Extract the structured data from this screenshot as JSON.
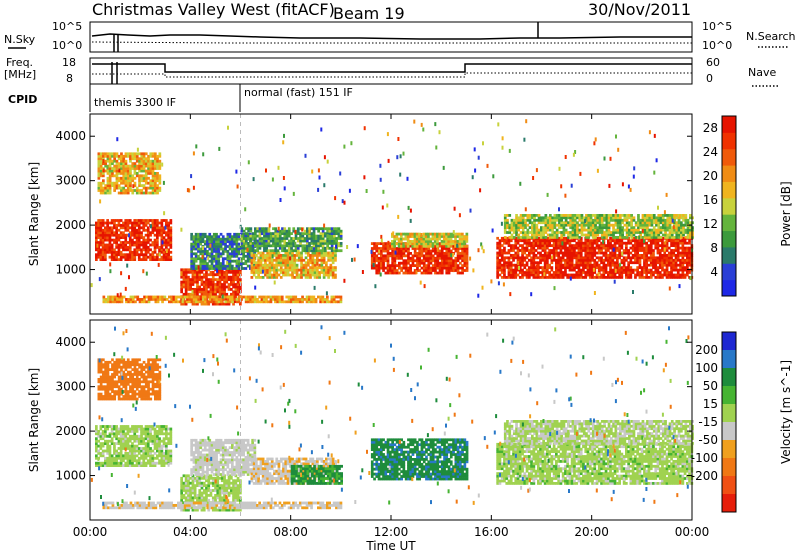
{
  "header": {
    "title": "Christmas Valley West (fitACF)",
    "beam": "Beam 19",
    "date": "30/Nov/2011"
  },
  "labels": {
    "nsky": "N.Sky",
    "nsky_lo": "10^0",
    "nsky_hi": "10^5",
    "nsearch": "N.Search",
    "nsearch_lo": "10^0",
    "nsearch_hi": "10^5",
    "freq": "Freq.",
    "freq_unit": "[MHz]",
    "freq_lo": "8",
    "freq_hi": "18",
    "nave": "Nave",
    "nave_lo": "0",
    "nave_hi": "60",
    "cpid": "CPID",
    "cpid1": "themis 3300 IF",
    "cpid2": "normal (fast) 151 IF"
  },
  "colors": {
    "power": [
      "#1e28e6",
      "#2a3fd6",
      "#2a7a6a",
      "#3c9a3c",
      "#64b43c",
      "#c8d23c",
      "#f0b41e",
      "#f08c14",
      "#f05a0a",
      "#f03200",
      "#e61400"
    ],
    "velocity": [
      "#1e28d2",
      "#2878c8",
      "#1e8c3c",
      "#46b432",
      "#a0d250",
      "#c8c8c8",
      "#f0a01e",
      "#f07814",
      "#f05014",
      "#e61e0a"
    ]
  },
  "chart_data": [
    {
      "type": "heatmap",
      "name": "power",
      "xlabel": "Time UT",
      "ylabel": "Slant Range [km]",
      "colorbar_label": "Power [dB]",
      "xlim": [
        0,
        24
      ],
      "ylim": [
        0,
        4500
      ],
      "xticks": [
        "00:00",
        "04:00",
        "08:00",
        "12:00",
        "16:00",
        "20:00",
        "00:00"
      ],
      "xtick_values": [
        0,
        4,
        8,
        12,
        16,
        20,
        24
      ],
      "yticks": [
        1000,
        2000,
        3000,
        4000
      ],
      "colorbar_ticks": [
        4,
        8,
        12,
        16,
        20,
        24,
        28
      ],
      "colorbar_range": [
        0,
        30
      ],
      "regions": [
        {
          "t": [
            0.2,
            3.2
          ],
          "r": [
            1200,
            2100
          ],
          "value": 27
        },
        {
          "t": [
            0.3,
            2.8
          ],
          "r": [
            2700,
            3600
          ],
          "value": 18
        },
        {
          "t": [
            3.6,
            6.0
          ],
          "r": [
            200,
            1000
          ],
          "value": 26
        },
        {
          "t": [
            4.0,
            6.6
          ],
          "r": [
            1000,
            1800
          ],
          "value": 8
        },
        {
          "t": [
            6.4,
            9.8
          ],
          "r": [
            800,
            1400
          ],
          "value": 18
        },
        {
          "t": [
            6.0,
            10.0
          ],
          "r": [
            1400,
            1900
          ],
          "value": 10
        },
        {
          "t": [
            11.2,
            15.0
          ],
          "r": [
            900,
            1600
          ],
          "value": 27
        },
        {
          "t": [
            12.0,
            15.0
          ],
          "r": [
            1500,
            1800
          ],
          "value": 16
        },
        {
          "t": [
            16.2,
            24.0
          ],
          "r": [
            800,
            1700
          ],
          "value": 28
        },
        {
          "t": [
            16.5,
            24.0
          ],
          "r": [
            1700,
            2200
          ],
          "value": 14
        },
        {
          "t": [
            0.5,
            10.0
          ],
          "r": [
            250,
            400
          ],
          "value": 20
        }
      ]
    },
    {
      "type": "heatmap",
      "name": "velocity",
      "xlabel": "Time UT",
      "ylabel": "Slant Range [km]",
      "colorbar_label": "Velocity [m s^-1]",
      "xlim": [
        0,
        24
      ],
      "ylim": [
        0,
        4500
      ],
      "xticks": [
        "00:00",
        "04:00",
        "08:00",
        "12:00",
        "16:00",
        "20:00",
        "00:00"
      ],
      "xtick_values": [
        0,
        4,
        8,
        12,
        16,
        20,
        24
      ],
      "yticks": [
        1000,
        2000,
        3000,
        4000
      ],
      "colorbar_ticks": [
        "200",
        "100",
        "50",
        "15",
        "-15",
        "-50",
        "-100",
        "-200"
      ],
      "regions": [
        {
          "t": [
            0.2,
            3.2
          ],
          "r": [
            1200,
            2100
          ],
          "value": 0
        },
        {
          "t": [
            0.3,
            2.8
          ],
          "r": [
            2700,
            3600
          ],
          "value": -150
        },
        {
          "t": [
            3.6,
            6.0
          ],
          "r": [
            200,
            1000
          ],
          "value": 0
        },
        {
          "t": [
            4.0,
            6.6
          ],
          "r": [
            1000,
            1800
          ],
          "value": -30
        },
        {
          "t": [
            6.4,
            9.8
          ],
          "r": [
            800,
            1400
          ],
          "value": -40
        },
        {
          "t": [
            8.0,
            10.0
          ],
          "r": [
            800,
            1200
          ],
          "value": 60
        },
        {
          "t": [
            11.2,
            15.0
          ],
          "r": [
            900,
            1800
          ],
          "value": 90
        },
        {
          "t": [
            16.2,
            24.0
          ],
          "r": [
            800,
            1700
          ],
          "value": 0
        },
        {
          "t": [
            16.5,
            24.0
          ],
          "r": [
            1700,
            2200
          ],
          "value": -10
        },
        {
          "t": [
            0.5,
            10.0
          ],
          "r": [
            250,
            400
          ],
          "value": -40
        }
      ]
    }
  ]
}
